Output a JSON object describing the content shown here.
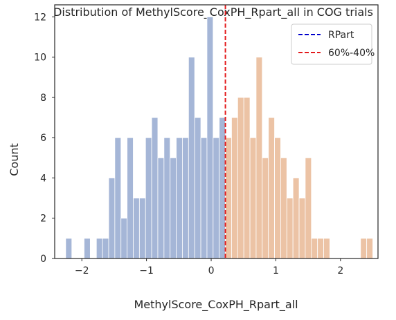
{
  "chart_data": {
    "type": "histogram",
    "title": "Distribution of MethylScore_CoxPH_Rpart_all in COG trials",
    "xlabel": "MethylScore_CoxPH_Rpart_all",
    "ylabel": "Count",
    "xlim": [
      -2.42,
      2.58
    ],
    "ylim": [
      0,
      12.6
    ],
    "x_ticks": [
      -2,
      -1,
      0,
      1,
      2
    ],
    "x_tick_labels": [
      "−2",
      "−1",
      "0",
      "1",
      "2"
    ],
    "y_ticks": [
      0,
      2,
      4,
      6,
      8,
      10,
      12
    ],
    "y_tick_labels": [
      "0",
      "2",
      "4",
      "6",
      "8",
      "10",
      "12"
    ],
    "grid": false,
    "legend_position": "top-right",
    "bin_width": 0.095,
    "threshold": 0.22,
    "series": [
      {
        "color": "#a5b6d7",
        "bins": [
          {
            "x0": -2.25,
            "count": 1
          },
          {
            "x0": -1.965,
            "count": 1
          },
          {
            "x0": -1.775,
            "count": 1
          },
          {
            "x0": -1.68,
            "count": 1
          },
          {
            "x0": -1.585,
            "count": 4
          },
          {
            "x0": -1.49,
            "count": 6
          },
          {
            "x0": -1.395,
            "count": 2
          },
          {
            "x0": -1.3,
            "count": 6
          },
          {
            "x0": -1.205,
            "count": 3
          },
          {
            "x0": -1.11,
            "count": 3
          },
          {
            "x0": -1.015,
            "count": 6
          },
          {
            "x0": -0.92,
            "count": 7
          },
          {
            "x0": -0.825,
            "count": 5
          },
          {
            "x0": -0.73,
            "count": 6
          },
          {
            "x0": -0.635,
            "count": 5
          },
          {
            "x0": -0.54,
            "count": 6
          },
          {
            "x0": -0.445,
            "count": 6
          },
          {
            "x0": -0.35,
            "count": 10
          },
          {
            "x0": -0.255,
            "count": 7
          },
          {
            "x0": -0.16,
            "count": 6
          },
          {
            "x0": -0.065,
            "count": 12
          },
          {
            "x0": 0.03,
            "count": 6
          },
          {
            "x0": 0.125,
            "count": 7
          },
          {
            "x0": 0.22,
            "count": 1
          }
        ]
      },
      {
        "color": "#ecc3a5",
        "bins": [
          {
            "x0": 0.22,
            "count": 6
          },
          {
            "x0": 0.315,
            "count": 7
          },
          {
            "x0": 0.41,
            "count": 8
          },
          {
            "x0": 0.505,
            "count": 8
          },
          {
            "x0": 0.6,
            "count": 6
          },
          {
            "x0": 0.695,
            "count": 10
          },
          {
            "x0": 0.79,
            "count": 5
          },
          {
            "x0": 0.885,
            "count": 7
          },
          {
            "x0": 0.98,
            "count": 6
          },
          {
            "x0": 1.075,
            "count": 5
          },
          {
            "x0": 1.17,
            "count": 3
          },
          {
            "x0": 1.265,
            "count": 4
          },
          {
            "x0": 1.36,
            "count": 3
          },
          {
            "x0": 1.455,
            "count": 5
          },
          {
            "x0": 1.55,
            "count": 1
          },
          {
            "x0": 1.645,
            "count": 1
          },
          {
            "x0": 1.74,
            "count": 1
          },
          {
            "x0": 2.31,
            "count": 1
          },
          {
            "x0": 2.405,
            "count": 1
          }
        ]
      }
    ],
    "legend": [
      {
        "label": "RPart",
        "color": "#0000cc",
        "style": "dashed"
      },
      {
        "label": "60%-40%",
        "color": "#e31a1c",
        "style": "dashed"
      }
    ]
  }
}
